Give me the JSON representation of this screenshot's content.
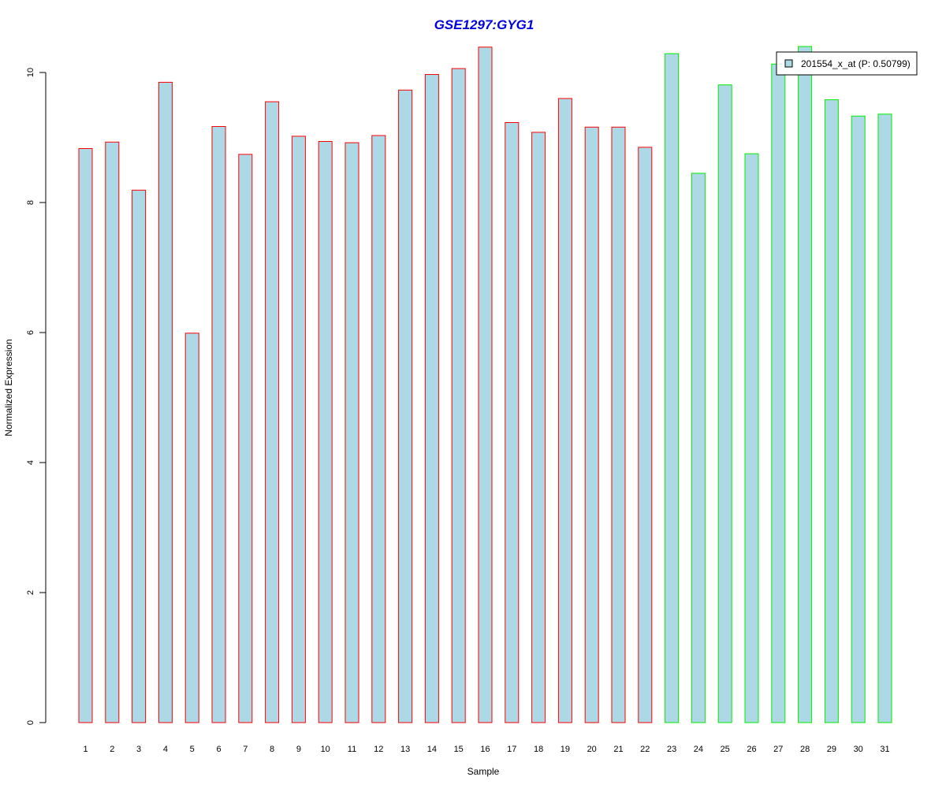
{
  "colors": {
    "title": "#0000dd",
    "bar_fill": "#add8e6",
    "group1_border": "#ff0000",
    "group2_border": "#00ee00",
    "axis": "#000000"
  },
  "chart_data": {
    "type": "bar",
    "title": "GSE1297:GYG1",
    "xlabel": "Sample",
    "ylabel": "Normalized Expression",
    "ylim": [
      0,
      10.4
    ],
    "yticks": [
      0,
      2,
      4,
      6,
      8,
      10
    ],
    "grid": false,
    "legend": {
      "position": "top-right",
      "entries": [
        "201554_x_at (P: 0.50799)"
      ]
    },
    "categories": [
      "1",
      "2",
      "3",
      "4",
      "5",
      "6",
      "7",
      "8",
      "9",
      "10",
      "11",
      "12",
      "13",
      "14",
      "15",
      "16",
      "17",
      "18",
      "19",
      "20",
      "21",
      "22",
      "23",
      "24",
      "25",
      "26",
      "27",
      "28",
      "29",
      "30",
      "31"
    ],
    "values": [
      8.83,
      8.93,
      8.19,
      9.85,
      5.99,
      9.17,
      8.74,
      9.55,
      9.02,
      8.94,
      8.92,
      9.03,
      9.73,
      9.97,
      10.06,
      10.39,
      9.23,
      9.08,
      9.6,
      9.16,
      9.16,
      8.85,
      10.29,
      8.45,
      9.81,
      8.75,
      10.13,
      10.4,
      9.58,
      9.33,
      9.36
    ],
    "groups": [
      1,
      1,
      1,
      1,
      1,
      1,
      1,
      1,
      1,
      1,
      1,
      1,
      1,
      1,
      1,
      1,
      1,
      1,
      1,
      1,
      1,
      1,
      2,
      2,
      2,
      2,
      2,
      2,
      2,
      2,
      2
    ]
  }
}
